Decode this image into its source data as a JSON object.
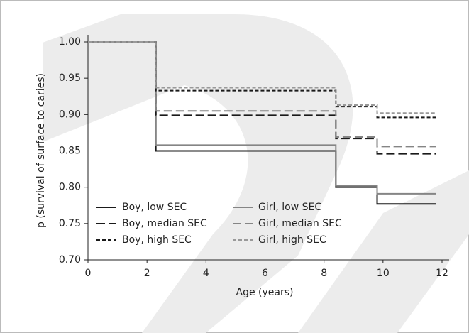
{
  "chart_data": {
    "type": "step",
    "x_label": "Age (years)",
    "y_label": "p (survival of surface to caries)",
    "x": [
      0,
      2.3,
      8.4,
      9.8,
      11.8
    ],
    "series": [
      {
        "name": "Boy, low SEC",
        "color": "#1a1a1a",
        "dash": "solid",
        "values": [
          1.0,
          0.85,
          0.8,
          0.777,
          0.777
        ]
      },
      {
        "name": "Girl, low SEC",
        "color": "#858585",
        "dash": "solid",
        "values": [
          1.0,
          0.858,
          0.802,
          0.791,
          0.791
        ]
      },
      {
        "name": "Boy, median SEC",
        "color": "#1a1a1a",
        "dash": "long",
        "values": [
          1.0,
          0.899,
          0.867,
          0.846,
          0.846
        ]
      },
      {
        "name": "Girl, median SEC",
        "color": "#858585",
        "dash": "long",
        "values": [
          1.0,
          0.905,
          0.869,
          0.856,
          0.856
        ]
      },
      {
        "name": "Boy, high SEC",
        "color": "#1a1a1a",
        "dash": "short",
        "values": [
          1.0,
          0.933,
          0.911,
          0.896,
          0.896
        ]
      },
      {
        "name": "Girl, high SEC",
        "color": "#999999",
        "dash": "short",
        "values": [
          1.0,
          0.937,
          0.913,
          0.902,
          0.902
        ]
      }
    ],
    "xlim": [
      0,
      12
    ],
    "xticks": [
      0,
      2,
      4,
      6,
      8,
      10,
      12
    ],
    "ylim": [
      0.7,
      1.0
    ],
    "yticks": [
      {
        "value": 0.7,
        "label": "0.70"
      },
      {
        "value": 0.75,
        "label": "0.75"
      },
      {
        "value": 0.8,
        "label": "0.80"
      },
      {
        "value": 0.85,
        "label": "0.85"
      },
      {
        "value": 0.9,
        "label": "0.90"
      },
      {
        "value": 0.95,
        "label": "0.95"
      },
      {
        "value": 1.0,
        "label": "1.00"
      }
    ],
    "legend": "lower left",
    "grid": false
  }
}
